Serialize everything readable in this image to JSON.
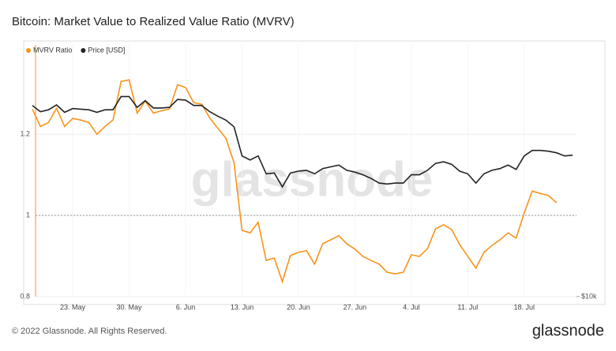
{
  "chart_data": {
    "type": "line",
    "title": "Bitcoin: Market Value to Realized Value Ratio (MVRV)",
    "watermark": "glassnode",
    "footer": "© 2022 Glassnode. All Rights Reserved.",
    "logo": "glassnode",
    "categories": [
      "18. May",
      "19. May",
      "20. May",
      "21. May",
      "22. May",
      "23. May",
      "24. May",
      "25. May",
      "26. May",
      "27. May",
      "28. May",
      "29. May",
      "30. May",
      "31. May",
      "1. Jun",
      "2. Jun",
      "3. Jun",
      "4. Jun",
      "5. Jun",
      "6. Jun",
      "7. Jun",
      "8. Jun",
      "9. Jun",
      "10. Jun",
      "11. Jun",
      "12. Jun",
      "13. Jun",
      "14. Jun",
      "15. Jun",
      "16. Jun",
      "17. Jun",
      "18. Jun",
      "19. Jun",
      "20. Jun",
      "21. Jun",
      "22. Jun",
      "23. Jun",
      "24. Jun",
      "25. Jun",
      "26. Jun",
      "27. Jun",
      "28. Jun",
      "29. Jun",
      "30. Jun",
      "1. Jul",
      "2. Jul",
      "3. Jul",
      "4. Jul",
      "5. Jul",
      "6. Jul",
      "7. Jul",
      "8. Jul",
      "9. Jul",
      "10. Jul",
      "11. Jul",
      "12. Jul",
      "13. Jul",
      "14. Jul",
      "15. Jul",
      "16. Jul",
      "17. Jul",
      "18. Jul",
      "19. Jul",
      "20. Jul",
      "21. Jul",
      "22. Jul",
      "23. Jul",
      "24. Jul"
    ],
    "xticks": [
      "23. May",
      "30. May",
      "6. Jun",
      "13. Jun",
      "20. Jun",
      "27. Jun",
      "4. Jul",
      "11. Jul",
      "18. Jul"
    ],
    "series": [
      {
        "name": "MVRV Ratio",
        "color": "#f7931a",
        "axis": "y",
        "values": [
          1.262,
          1.219,
          1.229,
          1.264,
          1.219,
          1.239,
          1.235,
          1.229,
          1.2,
          1.219,
          1.235,
          1.33,
          1.334,
          1.252,
          1.282,
          1.252,
          1.258,
          1.262,
          1.322,
          1.315,
          1.278,
          1.274,
          1.24,
          1.215,
          1.19,
          1.13,
          0.963,
          0.957,
          0.983,
          0.889,
          0.895,
          0.837,
          0.901,
          0.909,
          0.913,
          0.88,
          0.93,
          0.94,
          0.95,
          0.93,
          0.917,
          0.899,
          0.889,
          0.88,
          0.86,
          0.856,
          0.86,
          0.903,
          0.899,
          0.918,
          0.967,
          0.977,
          0.965,
          0.928,
          0.899,
          0.87,
          0.909,
          0.926,
          0.94,
          0.957,
          0.944,
          1.006,
          1.06,
          1.054,
          1.049,
          1.031,
          null,
          null
        ]
      },
      {
        "name": "Price [USD]",
        "color": "#222222",
        "axis": "y2",
        "values": [
          29200,
          28200,
          28500,
          29300,
          28100,
          28700,
          28600,
          28500,
          28100,
          28500,
          28500,
          30700,
          30700,
          28900,
          30000,
          28800,
          28800,
          28900,
          30200,
          30100,
          29200,
          29200,
          28200,
          27500,
          26900,
          25900,
          22000,
          21500,
          22000,
          19900,
          20000,
          18500,
          20000,
          20200,
          20300,
          19900,
          20500,
          20700,
          20900,
          20300,
          20100,
          19800,
          19400,
          18900,
          18800,
          18900,
          18900,
          19800,
          19800,
          20300,
          21100,
          21300,
          21000,
          20200,
          19900,
          18900,
          19900,
          20300,
          20500,
          20900,
          20400,
          22000,
          22700,
          22700,
          22600,
          22400,
          22000,
          22100
        ]
      }
    ],
    "ylim": [
      0.8,
      1.42
    ],
    "yticks": [
      0.8,
      1,
      1.2
    ],
    "reference_line": 1,
    "y2lim": [
      10000,
      41000
    ],
    "y2scale": "log",
    "y2ticks": [
      {
        "value": 10000,
        "label": "$10k"
      }
    ],
    "legend": "top-left",
    "grid": true
  }
}
